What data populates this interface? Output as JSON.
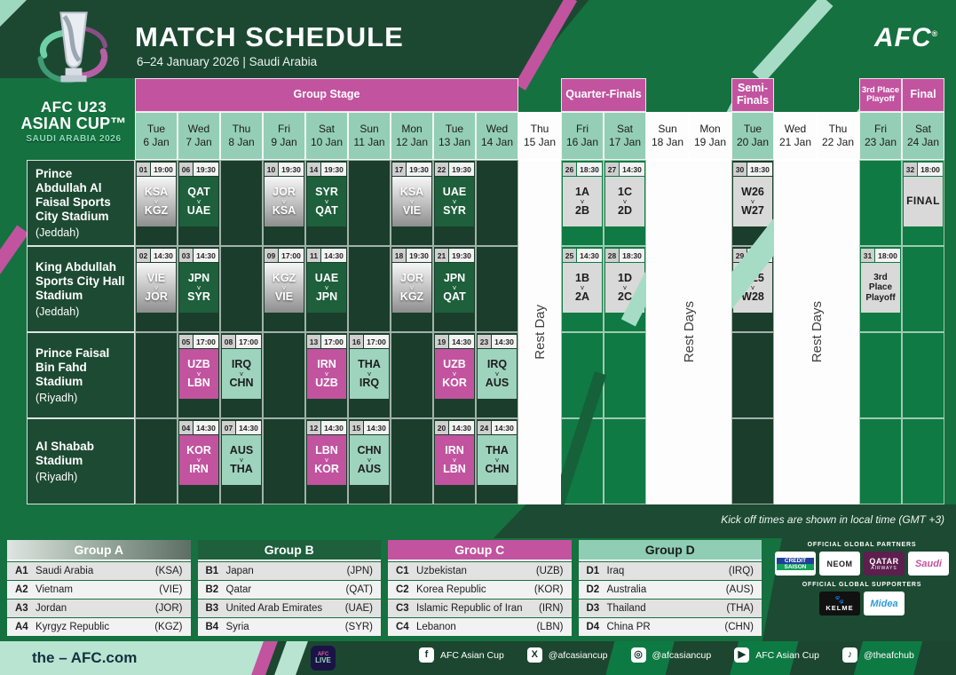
{
  "colors": {
    "green": "#15713f",
    "dark_green": "#1c4832",
    "grid_dark": "#1a3e2b",
    "grid_bright": "#0f7a43",
    "magenta": "#c2539f",
    "mint": "#94ceb6",
    "silver": "#bdbdbd",
    "knockout_gray": "#d9d9d9"
  },
  "header": {
    "title": "MATCH SCHEDULE",
    "subtitle": "6–24 January 2026 | Saudi Arabia",
    "brand": "AFC",
    "logo": {
      "line1": "AFC U23",
      "line2": "ASIAN CUP™",
      "line3": "SAUDI ARABIA 2026"
    }
  },
  "schedule": {
    "stages": [
      {
        "label": "Group Stage",
        "start": 1,
        "span": 9,
        "small": false
      },
      {
        "label": "Quarter-Finals",
        "start": 11,
        "span": 2,
        "small": false
      },
      {
        "label": "Semi-Finals",
        "start": 15,
        "span": 1,
        "small": false
      },
      {
        "label": "3rd Place Playoff",
        "start": 18,
        "span": 1,
        "small": true
      },
      {
        "label": "Final",
        "start": 19,
        "span": 1,
        "small": false
      }
    ],
    "days": [
      {
        "dow": "Tue",
        "date": "6 Jan",
        "rest": false
      },
      {
        "dow": "Wed",
        "date": "7 Jan",
        "rest": false
      },
      {
        "dow": "Thu",
        "date": "8 Jan",
        "rest": false
      },
      {
        "dow": "Fri",
        "date": "9 Jan",
        "rest": false
      },
      {
        "dow": "Sat",
        "date": "10 Jan",
        "rest": false
      },
      {
        "dow": "Sun",
        "date": "11 Jan",
        "rest": false
      },
      {
        "dow": "Mon",
        "date": "12 Jan",
        "rest": false
      },
      {
        "dow": "Tue",
        "date": "13 Jan",
        "rest": false
      },
      {
        "dow": "Wed",
        "date": "14 Jan",
        "rest": false
      },
      {
        "dow": "Thu",
        "date": "15 Jan",
        "rest": true
      },
      {
        "dow": "Fri",
        "date": "16 Jan",
        "rest": false
      },
      {
        "dow": "Sat",
        "date": "17 Jan",
        "rest": false
      },
      {
        "dow": "Sun",
        "date": "18 Jan",
        "rest": true
      },
      {
        "dow": "Mon",
        "date": "19 Jan",
        "rest": true
      },
      {
        "dow": "Tue",
        "date": "20 Jan",
        "rest": false
      },
      {
        "dow": "Wed",
        "date": "21 Jan",
        "rest": true
      },
      {
        "dow": "Thu",
        "date": "22 Jan",
        "rest": true
      },
      {
        "dow": "Fri",
        "date": "23 Jan",
        "rest": false
      },
      {
        "dow": "Sat",
        "date": "24 Jan",
        "rest": false
      }
    ],
    "bright_columns": [
      11,
      12,
      18,
      19
    ],
    "rest_columns": [
      {
        "label": "Rest Day",
        "start": 10,
        "span": 1
      },
      {
        "label": "Rest Days",
        "start": 13,
        "span": 2
      },
      {
        "label": "Rest Days",
        "start": 16,
        "span": 2
      }
    ],
    "stadiums": [
      {
        "name": "Prince Abdullah Al Faisal Sports City Stadium",
        "city": "(Jeddah)"
      },
      {
        "name": "King Abdullah Sports City Hall Stadium",
        "city": "(Jeddah)"
      },
      {
        "name": "Prince Faisal Bin Fahd Stadium",
        "city": "(Riyadh)"
      },
      {
        "name": "Al Shabab Stadium",
        "city": "(Riyadh)"
      }
    ],
    "matches": [
      {
        "no": "01",
        "time": "19:00",
        "row": 1,
        "col": 1,
        "group": "A",
        "home": "KSA",
        "away": "KGZ"
      },
      {
        "no": "06",
        "time": "19:30",
        "row": 1,
        "col": 2,
        "group": "B",
        "home": "QAT",
        "away": "UAE"
      },
      {
        "no": "10",
        "time": "19:30",
        "row": 1,
        "col": 4,
        "group": "A",
        "home": "JOR",
        "away": "KSA"
      },
      {
        "no": "14",
        "time": "19:30",
        "row": 1,
        "col": 5,
        "group": "B",
        "home": "SYR",
        "away": "QAT"
      },
      {
        "no": "17",
        "time": "19:30",
        "row": 1,
        "col": 7,
        "group": "A",
        "home": "KSA",
        "away": "VIE"
      },
      {
        "no": "22",
        "time": "19:30",
        "row": 1,
        "col": 8,
        "group": "B",
        "home": "UAE",
        "away": "SYR"
      },
      {
        "no": "26",
        "time": "18:30",
        "row": 1,
        "col": 11,
        "group": "K",
        "home": "1A",
        "away": "2B"
      },
      {
        "no": "27",
        "time": "14:30",
        "row": 1,
        "col": 12,
        "group": "K",
        "home": "1C",
        "away": "2D"
      },
      {
        "no": "30",
        "time": "18:30",
        "row": 1,
        "col": 15,
        "group": "K",
        "home": "W26",
        "away": "W27"
      },
      {
        "no": "32",
        "time": "18:00",
        "row": 1,
        "col": 19,
        "group": "K",
        "label": "FINAL",
        "final": true
      },
      {
        "no": "02",
        "time": "14:30",
        "row": 2,
        "col": 1,
        "group": "A",
        "home": "VIE",
        "away": "JOR"
      },
      {
        "no": "03",
        "time": "14:30",
        "row": 2,
        "col": 2,
        "group": "B",
        "home": "JPN",
        "away": "SYR"
      },
      {
        "no": "09",
        "time": "17:00",
        "row": 2,
        "col": 4,
        "group": "A",
        "home": "KGZ",
        "away": "VIE"
      },
      {
        "no": "11",
        "time": "14:30",
        "row": 2,
        "col": 5,
        "group": "B",
        "home": "UAE",
        "away": "JPN"
      },
      {
        "no": "18",
        "time": "19:30",
        "row": 2,
        "col": 7,
        "group": "A",
        "home": "JOR",
        "away": "KGZ"
      },
      {
        "no": "21",
        "time": "19:30",
        "row": 2,
        "col": 8,
        "group": "B",
        "home": "JPN",
        "away": "QAT"
      },
      {
        "no": "25",
        "time": "14:30",
        "row": 2,
        "col": 11,
        "group": "K",
        "home": "1B",
        "away": "2A"
      },
      {
        "no": "28",
        "time": "18:30",
        "row": 2,
        "col": 12,
        "group": "K",
        "home": "1D",
        "away": "2C"
      },
      {
        "no": "29",
        "time": "14:30",
        "row": 2,
        "col": 15,
        "group": "K",
        "home": "W25",
        "away": "W28"
      },
      {
        "no": "31",
        "time": "18:00",
        "row": 2,
        "col": 18,
        "group": "K",
        "label": "3rd Place Playoff",
        "final": false
      },
      {
        "no": "05",
        "time": "17:00",
        "row": 3,
        "col": 2,
        "group": "C",
        "home": "UZB",
        "away": "LBN"
      },
      {
        "no": "08",
        "time": "17:00",
        "row": 3,
        "col": 3,
        "group": "D",
        "home": "IRQ",
        "away": "CHN"
      },
      {
        "no": "13",
        "time": "17:00",
        "row": 3,
        "col": 5,
        "group": "C",
        "home": "IRN",
        "away": "UZB"
      },
      {
        "no": "16",
        "time": "17:00",
        "row": 3,
        "col": 6,
        "group": "D",
        "home": "THA",
        "away": "IRQ"
      },
      {
        "no": "19",
        "time": "14:30",
        "row": 3,
        "col": 8,
        "group": "C",
        "home": "UZB",
        "away": "KOR"
      },
      {
        "no": "23",
        "time": "14:30",
        "row": 3,
        "col": 9,
        "group": "D",
        "home": "IRQ",
        "away": "AUS"
      },
      {
        "no": "04",
        "time": "14:30",
        "row": 4,
        "col": 2,
        "group": "C",
        "home": "KOR",
        "away": "IRN"
      },
      {
        "no": "07",
        "time": "14:30",
        "row": 4,
        "col": 3,
        "group": "D",
        "home": "AUS",
        "away": "THA"
      },
      {
        "no": "12",
        "time": "14:30",
        "row": 4,
        "col": 5,
        "group": "C",
        "home": "LBN",
        "away": "KOR"
      },
      {
        "no": "15",
        "time": "14:30",
        "row": 4,
        "col": 6,
        "group": "D",
        "home": "CHN",
        "away": "AUS"
      },
      {
        "no": "20",
        "time": "14:30",
        "row": 4,
        "col": 8,
        "group": "C",
        "home": "IRN",
        "away": "LBN"
      },
      {
        "no": "24",
        "time": "14:30",
        "row": 4,
        "col": 9,
        "group": "D",
        "home": "THA",
        "away": "CHN"
      }
    ],
    "vs_label": "v",
    "note": "Kick off times are shown in local time (GMT +3)"
  },
  "groups": [
    {
      "name": "Group A",
      "style": "silver",
      "teams": [
        {
          "id": "A1",
          "name": "Saudi Arabia",
          "code": "(KSA)"
        },
        {
          "id": "A2",
          "name": "Vietnam",
          "code": "(VIE)"
        },
        {
          "id": "A3",
          "name": "Jordan",
          "code": "(JOR)"
        },
        {
          "id": "A4",
          "name": "Kyrgyz Republic",
          "code": "(KGZ)"
        }
      ]
    },
    {
      "name": "Group B",
      "style": "green",
      "teams": [
        {
          "id": "B1",
          "name": "Japan",
          "code": "(JPN)"
        },
        {
          "id": "B2",
          "name": "Qatar",
          "code": "(QAT)"
        },
        {
          "id": "B3",
          "name": "United Arab Emirates",
          "code": "(UAE)"
        },
        {
          "id": "B4",
          "name": "Syria",
          "code": "(SYR)"
        }
      ]
    },
    {
      "name": "Group C",
      "style": "magenta",
      "teams": [
        {
          "id": "C1",
          "name": "Uzbekistan",
          "code": "(UZB)"
        },
        {
          "id": "C2",
          "name": "Korea Republic",
          "code": "(KOR)"
        },
        {
          "id": "C3",
          "name": "Islamic Republic of Iran",
          "code": "(IRN)"
        },
        {
          "id": "C4",
          "name": "Lebanon",
          "code": "(LBN)"
        }
      ]
    },
    {
      "name": "Group D",
      "style": "mint",
      "teams": [
        {
          "id": "D1",
          "name": "Iraq",
          "code": "(IRQ)"
        },
        {
          "id": "D2",
          "name": "Australia",
          "code": "(AUS)"
        },
        {
          "id": "D3",
          "name": "Thailand",
          "code": "(THA)"
        },
        {
          "id": "D4",
          "name": "China PR",
          "code": "(CHN)"
        }
      ]
    }
  ],
  "sponsors": {
    "partners_label": "OFFICIAL GLOBAL PARTNERS",
    "supporters_label": "OFFICIAL GLOBAL SUPPORTERS",
    "credit_line1": "CREDIT",
    "credit_line2": "SAISON",
    "neom": "NEOM",
    "qatar_line1": "QATAR",
    "qatar_line2": "AIRWAYS",
    "saudi": "Saudi",
    "kelme": "KELME",
    "midea": "Midea"
  },
  "footer": {
    "site": "the – AFC.com",
    "app_line1": "AFC",
    "app_line2": "LIVE",
    "social": [
      {
        "network": "facebook",
        "handle": "AFC Asian Cup"
      },
      {
        "network": "x",
        "handle": "@afcasiancup"
      },
      {
        "network": "instagram",
        "handle": "@afcasiancup"
      },
      {
        "network": "youtube",
        "handle": "AFC Asian Cup"
      },
      {
        "network": "tiktok",
        "handle": "@theafchub"
      }
    ]
  }
}
